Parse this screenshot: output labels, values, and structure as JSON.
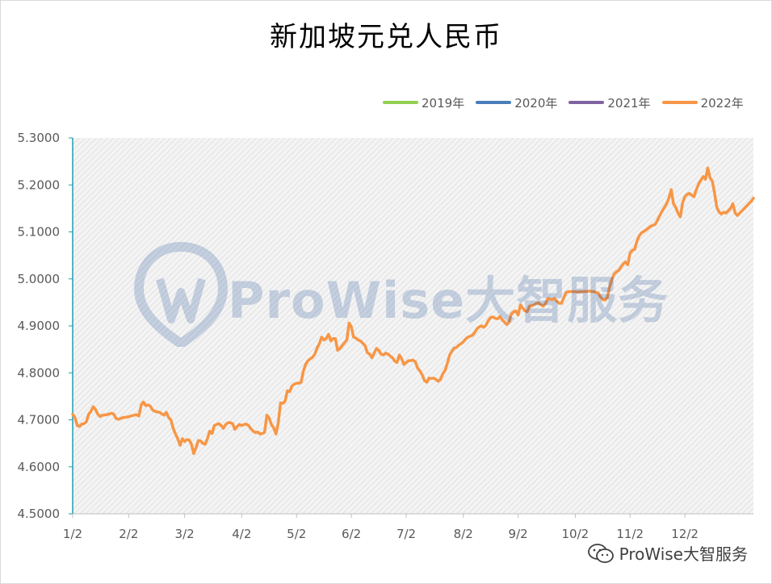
{
  "chart_data": {
    "type": "line",
    "title": "新加坡元兑人民币",
    "xlabel": "",
    "ylabel": "",
    "ylim": [
      4.5,
      5.3
    ],
    "yticks": [
      "5.3000",
      "5.2000",
      "5.1000",
      "5.0000",
      "4.9000",
      "4.8000",
      "4.7000",
      "4.6000",
      "4.5000"
    ],
    "ytick_values": [
      5.3,
      5.2,
      5.1,
      5.0,
      4.9,
      4.8,
      4.7,
      4.6,
      4.5
    ],
    "xticks": [
      "1/2",
      "2/2",
      "3/2",
      "4/2",
      "5/2",
      "6/2",
      "7/2",
      "8/2",
      "9/2",
      "10/2",
      "11/2",
      "12/2"
    ],
    "grid": "off",
    "legend_position": "top-right",
    "series": [
      {
        "name": "2019年",
        "color": "#92d050",
        "values": []
      },
      {
        "name": "2020年",
        "color": "#4a7ebb",
        "values": []
      },
      {
        "name": "2021年",
        "color": "#8064a2",
        "values": []
      },
      {
        "name": "2022年",
        "color": "#f79646",
        "points": [
          [
            0,
            4.712
          ],
          [
            1,
            4.705
          ],
          [
            2,
            4.688
          ],
          [
            3,
            4.686
          ],
          [
            4,
            4.691
          ],
          [
            5,
            4.692
          ],
          [
            6,
            4.696
          ],
          [
            7,
            4.712
          ],
          [
            8,
            4.718
          ],
          [
            9,
            4.728
          ],
          [
            10,
            4.722
          ],
          [
            11,
            4.712
          ],
          [
            12,
            4.707
          ],
          [
            13,
            4.71
          ],
          [
            15,
            4.711
          ],
          [
            17,
            4.714
          ],
          [
            18,
            4.712
          ],
          [
            19,
            4.703
          ],
          [
            20,
            4.701
          ],
          [
            22,
            4.705
          ],
          [
            24,
            4.706
          ],
          [
            26,
            4.709
          ],
          [
            28,
            4.711
          ],
          [
            29,
            4.708
          ],
          [
            30,
            4.732
          ],
          [
            31,
            4.738
          ],
          [
            32,
            4.73
          ],
          [
            33,
            4.732
          ],
          [
            34,
            4.729
          ],
          [
            35,
            4.721
          ],
          [
            36,
            4.718
          ],
          [
            38,
            4.716
          ],
          [
            40,
            4.71
          ],
          [
            41,
            4.716
          ],
          [
            42,
            4.705
          ],
          [
            43,
            4.7
          ],
          [
            44,
            4.682
          ],
          [
            45,
            4.67
          ],
          [
            46,
            4.66
          ],
          [
            47,
            4.646
          ],
          [
            48,
            4.66
          ],
          [
            49,
            4.654
          ],
          [
            50,
            4.658
          ],
          [
            51,
            4.657
          ],
          [
            52,
            4.648
          ],
          [
            53,
            4.628
          ],
          [
            54,
            4.641
          ],
          [
            55,
            4.656
          ],
          [
            56,
            4.655
          ],
          [
            57,
            4.65
          ],
          [
            58,
            4.648
          ],
          [
            59,
            4.66
          ],
          [
            60,
            4.676
          ],
          [
            61,
            4.671
          ],
          [
            62,
            4.688
          ],
          [
            63,
            4.69
          ],
          [
            64,
            4.692
          ],
          [
            65,
            4.688
          ],
          [
            66,
            4.682
          ],
          [
            67,
            4.69
          ],
          [
            68,
            4.694
          ],
          [
            69,
            4.694
          ],
          [
            70,
            4.692
          ],
          [
            71,
            4.68
          ],
          [
            72,
            4.686
          ],
          [
            73,
            4.69
          ],
          [
            74,
            4.688
          ],
          [
            75,
            4.69
          ],
          [
            76,
            4.691
          ],
          [
            77,
            4.688
          ],
          [
            78,
            4.681
          ],
          [
            79,
            4.676
          ],
          [
            80,
            4.673
          ],
          [
            81,
            4.674
          ],
          [
            82,
            4.67
          ],
          [
            83,
            4.671
          ],
          [
            84,
            4.673
          ],
          [
            85,
            4.71
          ],
          [
            86,
            4.704
          ],
          [
            87,
            4.69
          ],
          [
            88,
            4.683
          ],
          [
            89,
            4.67
          ],
          [
            90,
            4.694
          ],
          [
            91,
            4.736
          ],
          [
            92,
            4.735
          ],
          [
            93,
            4.74
          ],
          [
            94,
            4.762
          ],
          [
            95,
            4.76
          ],
          [
            96,
            4.772
          ],
          [
            97,
            4.776
          ],
          [
            98,
            4.778
          ],
          [
            99,
            4.778
          ],
          [
            100,
            4.78
          ],
          [
            101,
            4.804
          ],
          [
            102,
            4.818
          ],
          [
            103,
            4.826
          ],
          [
            104,
            4.83
          ],
          [
            105,
            4.833
          ],
          [
            106,
            4.84
          ],
          [
            107,
            4.853
          ],
          [
            108,
            4.862
          ],
          [
            109,
            4.876
          ],
          [
            110,
            4.87
          ],
          [
            111,
            4.873
          ],
          [
            112,
            4.882
          ],
          [
            113,
            4.868
          ],
          [
            114,
            4.873
          ],
          [
            115,
            4.873
          ],
          [
            116,
            4.848
          ],
          [
            117,
            4.852
          ],
          [
            118,
            4.858
          ],
          [
            119,
            4.864
          ],
          [
            120,
            4.87
          ],
          [
            121,
            4.906
          ],
          [
            122,
            4.898
          ],
          [
            123,
            4.876
          ],
          [
            124,
            4.874
          ],
          [
            125,
            4.87
          ],
          [
            126,
            4.868
          ],
          [
            127,
            4.863
          ],
          [
            128,
            4.858
          ],
          [
            129,
            4.843
          ],
          [
            130,
            4.84
          ],
          [
            131,
            4.832
          ],
          [
            132,
            4.842
          ],
          [
            133,
            4.852
          ],
          [
            134,
            4.848
          ],
          [
            135,
            4.84
          ],
          [
            136,
            4.838
          ],
          [
            137,
            4.842
          ],
          [
            138,
            4.84
          ],
          [
            139,
            4.836
          ],
          [
            140,
            4.832
          ],
          [
            141,
            4.825
          ],
          [
            142,
            4.822
          ],
          [
            143,
            4.838
          ],
          [
            144,
            4.83
          ],
          [
            145,
            4.818
          ],
          [
            146,
            4.822
          ],
          [
            147,
            4.826
          ],
          [
            148,
            4.826
          ],
          [
            149,
            4.827
          ],
          [
            150,
            4.824
          ],
          [
            151,
            4.81
          ],
          [
            152,
            4.804
          ],
          [
            153,
            4.796
          ],
          [
            154,
            4.784
          ],
          [
            155,
            4.78
          ],
          [
            156,
            4.789
          ],
          [
            157,
            4.788
          ],
          [
            158,
            4.789
          ],
          [
            159,
            4.786
          ],
          [
            160,
            4.782
          ],
          [
            161,
            4.786
          ],
          [
            162,
            4.798
          ],
          [
            163,
            4.805
          ],
          [
            164,
            4.82
          ],
          [
            165,
            4.838
          ],
          [
            166,
            4.846
          ],
          [
            167,
            4.853
          ],
          [
            168,
            4.854
          ],
          [
            169,
            4.859
          ],
          [
            170,
            4.862
          ],
          [
            171,
            4.866
          ],
          [
            172,
            4.872
          ],
          [
            173,
            4.876
          ],
          [
            174,
            4.878
          ],
          [
            175,
            4.88
          ],
          [
            176,
            4.886
          ],
          [
            177,
            4.894
          ],
          [
            178,
            4.898
          ],
          [
            179,
            4.9
          ],
          [
            180,
            4.897
          ],
          [
            181,
            4.902
          ],
          [
            182,
            4.912
          ],
          [
            183,
            4.918
          ],
          [
            184,
            4.919
          ],
          [
            185,
            4.916
          ],
          [
            186,
            4.915
          ],
          [
            187,
            4.92
          ],
          [
            188,
            4.913
          ],
          [
            189,
            4.908
          ],
          [
            190,
            4.903
          ],
          [
            191,
            4.908
          ],
          [
            192,
            4.925
          ],
          [
            193,
            4.93
          ],
          [
            194,
            4.932
          ],
          [
            195,
            4.923
          ],
          [
            196,
            4.945
          ],
          [
            197,
            4.938
          ],
          [
            198,
            4.932
          ],
          [
            199,
            4.93
          ],
          [
            200,
            4.942
          ],
          [
            201,
            4.943
          ],
          [
            202,
            4.945
          ],
          [
            203,
            4.948
          ],
          [
            204,
            4.949
          ],
          [
            205,
            4.945
          ],
          [
            206,
            4.942
          ],
          [
            207,
            4.948
          ],
          [
            208,
            4.958
          ],
          [
            209,
            4.957
          ],
          [
            210,
            4.956
          ],
          [
            211,
            4.958
          ],
          [
            212,
            4.952
          ],
          [
            213,
            4.948
          ],
          [
            214,
            4.948
          ],
          [
            215,
            4.96
          ],
          [
            216,
            4.971
          ],
          [
            217,
            4.973
          ],
          [
            218,
            4.973
          ],
          [
            219,
            4.973
          ],
          [
            220,
            4.973
          ],
          [
            221,
            4.972
          ],
          [
            222,
            4.973
          ],
          [
            224,
            4.973
          ],
          [
            226,
            4.974
          ],
          [
            228,
            4.973
          ],
          [
            230,
            4.97
          ],
          [
            231,
            4.962
          ],
          [
            232,
            4.956
          ],
          [
            233,
            4.955
          ],
          [
            234,
            4.96
          ],
          [
            235,
            4.982
          ],
          [
            236,
            4.998
          ],
          [
            237,
            5.01
          ],
          [
            238,
            5.015
          ],
          [
            239,
            5.018
          ],
          [
            240,
            5.025
          ],
          [
            241,
            5.032
          ],
          [
            242,
            5.036
          ],
          [
            243,
            5.03
          ],
          [
            244,
            5.055
          ],
          [
            245,
            5.061
          ],
          [
            246,
            5.063
          ],
          [
            247,
            5.08
          ],
          [
            248,
            5.092
          ],
          [
            249,
            5.098
          ],
          [
            250,
            5.101
          ],
          [
            251,
            5.104
          ],
          [
            252,
            5.108
          ],
          [
            253,
            5.112
          ],
          [
            254,
            5.114
          ],
          [
            255,
            5.116
          ],
          [
            256,
            5.125
          ],
          [
            257,
            5.135
          ],
          [
            258,
            5.144
          ],
          [
            259,
            5.152
          ],
          [
            260,
            5.16
          ],
          [
            261,
            5.172
          ],
          [
            262,
            5.19
          ],
          [
            263,
            5.16
          ],
          [
            264,
            5.152
          ],
          [
            265,
            5.14
          ],
          [
            266,
            5.132
          ],
          [
            267,
            5.162
          ],
          [
            268,
            5.175
          ],
          [
            269,
            5.18
          ],
          [
            270,
            5.182
          ],
          [
            271,
            5.178
          ],
          [
            272,
            5.175
          ],
          [
            273,
            5.19
          ],
          [
            274,
            5.202
          ],
          [
            275,
            5.21
          ],
          [
            276,
            5.218
          ],
          [
            277,
            5.212
          ],
          [
            278,
            5.236
          ],
          [
            279,
            5.215
          ],
          [
            280,
            5.208
          ],
          [
            281,
            5.182
          ],
          [
            282,
            5.152
          ],
          [
            283,
            5.142
          ],
          [
            284,
            5.138
          ],
          [
            285,
            5.142
          ],
          [
            286,
            5.14
          ],
          [
            287,
            5.145
          ],
          [
            288,
            5.15
          ],
          [
            289,
            5.16
          ],
          [
            290,
            5.14
          ],
          [
            291,
            5.135
          ],
          [
            292,
            5.14
          ],
          [
            293,
            5.145
          ],
          [
            294,
            5.15
          ],
          [
            295,
            5.155
          ],
          [
            296,
            5.16
          ],
          [
            297,
            5.165
          ],
          [
            298,
            5.172
          ]
        ]
      }
    ]
  },
  "watermark": {
    "text": "ProWise大智服务"
  },
  "footer": {
    "brand": "ProWise大智服务",
    "icon": "wechat-icon"
  },
  "colors": {
    "axis": "#1f9eaf",
    "plot_bg": "#f4f4f4",
    "hatch": "#dcdcdc",
    "label": "#595959"
  }
}
